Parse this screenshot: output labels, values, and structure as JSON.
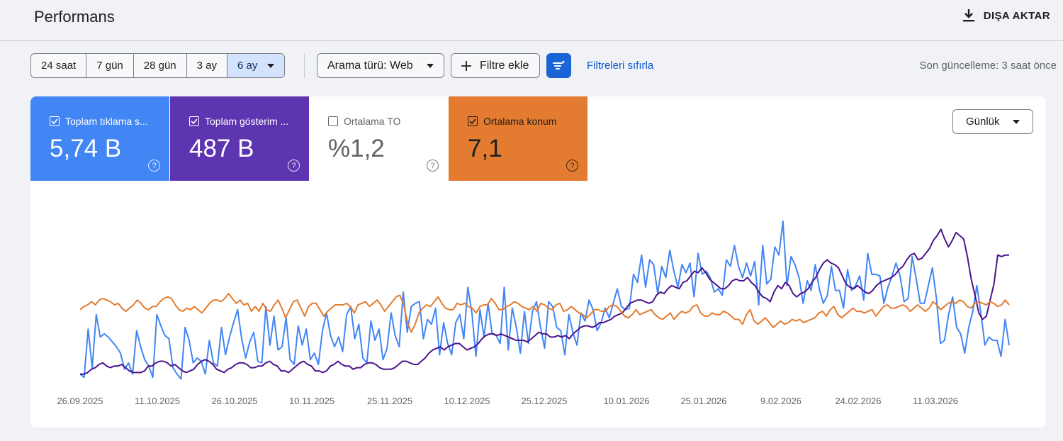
{
  "header": {
    "title": "Performans",
    "export_label": "DIŞA AKTAR"
  },
  "toolbar": {
    "ranges": [
      "24 saat",
      "7 gün",
      "28 gün",
      "3 ay",
      "6 ay"
    ],
    "active_range": "6 ay",
    "search_type": "Arama türü: Web",
    "add_filter": "Filtre ekle",
    "reset_filters": "Filtreleri sıfırla",
    "last_updated": "Son güncelleme: 3 saat önce"
  },
  "metrics": {
    "clicks": {
      "label": "Toplam tıklama s...",
      "value": "5,74 B",
      "checked": true,
      "color": "#4285f4"
    },
    "impressions": {
      "label": "Toplam gösterim ...",
      "value": "487 B",
      "checked": true,
      "color": "#5e35b1"
    },
    "ctr": {
      "label": "Ortalama TO",
      "value": "%1,2",
      "checked": false
    },
    "position": {
      "label": "Ortalama konum",
      "value": "7,1",
      "checked": true,
      "color": "#e37b30"
    }
  },
  "granularity": "Günlük",
  "chart_data": {
    "type": "line",
    "x_ticks": [
      "26.09.2025",
      "11.10.2025",
      "26.10.2025",
      "10.11.2025",
      "25.11.2025",
      "10.12.2025",
      "25.12.2025",
      "10.01.2026",
      "25.01.2026",
      "9.02.2026",
      "24.02.2026",
      "11.03.2026"
    ],
    "y_axis_visible": false,
    "grid": false,
    "series": [
      {
        "key": "clicks",
        "color": "#4285f4",
        "values": [
          0.05,
          0.03,
          0.33,
          0.09,
          0.42,
          0.28,
          0.3,
          0.28,
          0.25,
          0.22,
          0.18,
          0.08,
          0.12,
          0.05,
          0.32,
          0.22,
          0.14,
          0.1,
          0.03,
          0.42,
          0.35,
          0.29,
          0.27,
          0.09,
          0.05,
          0.02,
          0.34,
          0.26,
          0.12,
          0.15,
          0.13,
          0.05,
          0.26,
          0.12,
          0.1,
          0.34,
          0.17,
          0.28,
          0.37,
          0.45,
          0.27,
          0.15,
          0.25,
          0.31,
          0.13,
          0.12,
          0.47,
          0.23,
          0.41,
          0.2,
          0.22,
          0.4,
          0.14,
          0.11,
          0.35,
          0.23,
          0.33,
          0.14,
          0.18,
          0.11,
          0.32,
          0.43,
          0.29,
          0.22,
          0.28,
          0.19,
          0.42,
          0.47,
          0.27,
          0.36,
          0.15,
          0.12,
          0.38,
          0.26,
          0.33,
          0.14,
          0.21,
          0.43,
          0.29,
          0.22,
          0.56,
          0.31,
          0.47,
          0.49,
          0.5,
          0.27,
          0.39,
          0.36,
          0.46,
          0.17,
          0.37,
          0.24,
          0.17,
          0.37,
          0.42,
          0.27,
          0.59,
          0.43,
          0.16,
          0.45,
          0.28,
          0.49,
          0.3,
          0.29,
          0.24,
          0.59,
          0.2,
          0.46,
          0.34,
          0.18,
          0.44,
          0.24,
          0.44,
          0.5,
          0.34,
          0.21,
          0.5,
          0.47,
          0.34,
          0.32,
          0.17,
          0.42,
          0.31,
          0.23,
          0.43,
          0.38,
          0.51,
          0.45,
          0.32,
          0.37,
          0.46,
          0.4,
          0.49,
          0.58,
          0.47,
          0.45,
          0.46,
          0.67,
          0.62,
          0.79,
          0.59,
          0.76,
          0.73,
          0.55,
          0.72,
          0.65,
          0.82,
          0.69,
          0.59,
          0.73,
          0.68,
          0.74,
          0.53,
          0.8,
          0.67,
          0.69,
          0.65,
          0.56,
          0.58,
          0.54,
          0.76,
          0.72,
          0.85,
          0.72,
          0.65,
          0.74,
          0.66,
          0.75,
          0.48,
          0.85,
          0.61,
          0.64,
          0.84,
          0.79,
          1.0,
          0.6,
          0.78,
          0.73,
          0.65,
          0.49,
          0.63,
          0.57,
          0.73,
          0.58,
          0.49,
          0.54,
          0.72,
          0.57,
          0.57,
          0.46,
          0.7,
          0.57,
          0.6,
          0.66,
          0.51,
          0.8,
          0.67,
          0.67,
          0.66,
          0.49,
          0.59,
          0.66,
          0.74,
          0.66,
          0.5,
          0.52,
          0.78,
          0.64,
          0.49,
          0.49,
          0.6,
          0.71,
          0.52,
          0.24,
          0.26,
          0.42,
          0.53,
          0.34,
          0.3,
          0.18,
          0.34,
          0.44,
          0.6,
          0.43,
          0.23,
          0.28,
          0.26,
          0.26,
          0.16,
          0.39,
          0.23
        ]
      },
      {
        "key": "impressions",
        "color": "#4a148c",
        "values": [
          0.05,
          0.05,
          0.06,
          0.08,
          0.09,
          0.11,
          0.12,
          0.1,
          0.09,
          0.1,
          0.1,
          0.11,
          0.09,
          0.07,
          0.06,
          0.06,
          0.06,
          0.07,
          0.1,
          0.1,
          0.12,
          0.13,
          0.13,
          0.12,
          0.1,
          0.11,
          0.09,
          0.07,
          0.06,
          0.07,
          0.08,
          0.11,
          0.13,
          0.14,
          0.13,
          0.11,
          0.08,
          0.07,
          0.06,
          0.08,
          0.09,
          0.11,
          0.12,
          0.12,
          0.11,
          0.09,
          0.09,
          0.1,
          0.1,
          0.12,
          0.13,
          0.11,
          0.1,
          0.07,
          0.07,
          0.06,
          0.08,
          0.1,
          0.12,
          0.13,
          0.11,
          0.1,
          0.07,
          0.07,
          0.06,
          0.07,
          0.1,
          0.11,
          0.13,
          0.11,
          0.1,
          0.1,
          0.08,
          0.09,
          0.09,
          0.11,
          0.12,
          0.12,
          0.11,
          0.09,
          0.08,
          0.08,
          0.08,
          0.09,
          0.11,
          0.13,
          0.13,
          0.12,
          0.11,
          0.11,
          0.13,
          0.15,
          0.18,
          0.2,
          0.21,
          0.22,
          0.2,
          0.22,
          0.23,
          0.24,
          0.24,
          0.22,
          0.2,
          0.21,
          0.22,
          0.24,
          0.27,
          0.29,
          0.3,
          0.3,
          0.29,
          0.3,
          0.29,
          0.28,
          0.27,
          0.26,
          0.26,
          0.26,
          0.25,
          0.27,
          0.29,
          0.31,
          0.3,
          0.3,
          0.28,
          0.28,
          0.29,
          0.28,
          0.29,
          0.27,
          0.3,
          0.32,
          0.34,
          0.35,
          0.35,
          0.34,
          0.35,
          0.37,
          0.37,
          0.38,
          0.39,
          0.41,
          0.42,
          0.43,
          0.46,
          0.49,
          0.5,
          0.51,
          0.51,
          0.5,
          0.49,
          0.5,
          0.54,
          0.56,
          0.55,
          0.58,
          0.6,
          0.59,
          0.58,
          0.62,
          0.63,
          0.66,
          0.69,
          0.68,
          0.71,
          0.68,
          0.64,
          0.62,
          0.6,
          0.58,
          0.58,
          0.6,
          0.63,
          0.64,
          0.63,
          0.63,
          0.65,
          0.62,
          0.6,
          0.56,
          0.53,
          0.52,
          0.5,
          0.56,
          0.6,
          0.58,
          0.62,
          0.6,
          0.55,
          0.53,
          0.55,
          0.56,
          0.58,
          0.62,
          0.65,
          0.7,
          0.74,
          0.76,
          0.74,
          0.73,
          0.71,
          0.66,
          0.61,
          0.59,
          0.58,
          0.6,
          0.58,
          0.56,
          0.55,
          0.57,
          0.6,
          0.62,
          0.63,
          0.64,
          0.65,
          0.67,
          0.7,
          0.72,
          0.76,
          0.79,
          0.8,
          0.76,
          0.77,
          0.8,
          0.83,
          0.88,
          0.91,
          0.95,
          0.89,
          0.84,
          0.88,
          0.93,
          0.91,
          0.89,
          0.78,
          0.64,
          0.54,
          0.43,
          0.39,
          0.41,
          0.51,
          0.61,
          0.79,
          0.78,
          0.79,
          0.79
        ]
      },
      {
        "key": "position",
        "color": "#e37b30",
        "values": [
          0.45,
          0.47,
          0.48,
          0.5,
          0.48,
          0.51,
          0.52,
          0.51,
          0.5,
          0.48,
          0.49,
          0.46,
          0.44,
          0.46,
          0.48,
          0.51,
          0.49,
          0.46,
          0.45,
          0.47,
          0.47,
          0.5,
          0.52,
          0.53,
          0.52,
          0.48,
          0.45,
          0.44,
          0.46,
          0.45,
          0.47,
          0.45,
          0.43,
          0.46,
          0.49,
          0.51,
          0.51,
          0.5,
          0.52,
          0.55,
          0.52,
          0.49,
          0.51,
          0.48,
          0.49,
          0.44,
          0.47,
          0.44,
          0.49,
          0.45,
          0.44,
          0.48,
          0.51,
          0.46,
          0.4,
          0.45,
          0.5,
          0.51,
          0.46,
          0.41,
          0.47,
          0.49,
          0.49,
          0.45,
          0.41,
          0.44,
          0.46,
          0.48,
          0.48,
          0.48,
          0.49,
          0.47,
          0.43,
          0.48,
          0.49,
          0.5,
          0.47,
          0.49,
          0.51,
          0.48,
          0.44,
          0.47,
          0.5,
          0.53,
          0.54,
          0.48,
          0.37,
          0.31,
          0.36,
          0.43,
          0.46,
          0.48,
          0.47,
          0.5,
          0.53,
          0.49,
          0.46,
          0.45,
          0.45,
          0.49,
          0.48,
          0.49,
          0.47,
          0.46,
          0.43,
          0.47,
          0.48,
          0.48,
          0.52,
          0.49,
          0.45,
          0.45,
          0.47,
          0.48,
          0.5,
          0.49,
          0.47,
          0.46,
          0.45,
          0.47,
          0.44,
          0.49,
          0.48,
          0.46,
          0.45,
          0.48,
          0.49,
          0.44,
          0.45,
          0.47,
          0.45,
          0.43,
          0.42,
          0.4,
          0.42,
          0.45,
          0.45,
          0.44,
          0.44,
          0.47,
          0.48,
          0.47,
          0.44,
          0.41,
          0.4,
          0.42,
          0.45,
          0.42,
          0.43,
          0.44,
          0.45,
          0.42,
          0.4,
          0.39,
          0.41,
          0.43,
          0.39,
          0.42,
          0.44,
          0.43,
          0.44,
          0.47,
          0.48,
          0.43,
          0.41,
          0.41,
          0.43,
          0.42,
          0.42,
          0.44,
          0.43,
          0.41,
          0.39,
          0.39,
          0.36,
          0.42,
          0.45,
          0.38,
          0.36,
          0.38,
          0.4,
          0.37,
          0.34,
          0.36,
          0.38,
          0.36,
          0.37,
          0.39,
          0.38,
          0.39,
          0.37,
          0.38,
          0.39,
          0.4,
          0.43,
          0.44,
          0.41,
          0.45,
          0.47,
          0.42,
          0.4,
          0.42,
          0.44,
          0.46,
          0.44,
          0.44,
          0.43,
          0.44,
          0.45,
          0.41,
          0.44,
          0.47,
          0.48,
          0.46,
          0.46,
          0.47,
          0.48,
          0.47,
          0.44,
          0.46,
          0.48,
          0.46,
          0.44,
          0.46,
          0.5,
          0.48,
          0.45,
          0.47,
          0.49,
          0.5,
          0.49,
          0.51,
          0.5,
          0.47,
          0.46,
          0.49,
          0.5,
          0.49,
          0.48,
          0.5,
          0.49,
          0.47,
          0.48,
          0.51,
          0.48
        ]
      }
    ]
  }
}
